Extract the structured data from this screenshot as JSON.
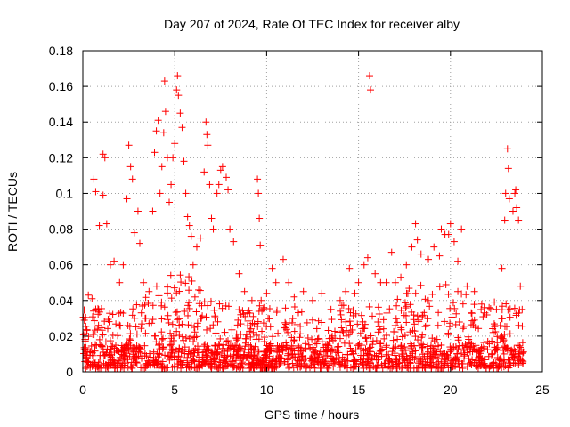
{
  "colors": {
    "series": "#ff0000",
    "axis": "#000000",
    "grid": "#a0a0a0",
    "background": "#ffffff"
  },
  "chart_data": {
    "type": "scatter",
    "title": "Day 207 of 2024, Rate Of TEC Index for receiver alby",
    "xlabel": "GPS time / hours",
    "ylabel": "ROTI / TECUs",
    "xlim": [
      0,
      25
    ],
    "ylim": [
      0,
      0.18
    ],
    "xticks": [
      "0",
      "5",
      "10",
      "15",
      "20",
      "25"
    ],
    "yticks": [
      "0",
      "0.02",
      "0.04",
      "0.06",
      "0.08",
      "0.1",
      "0.12",
      "0.14",
      "0.16",
      "0.18"
    ],
    "grid": true,
    "marker": "+",
    "series": [
      {
        "points": [
          [
            0.3,
            0.043
          ],
          [
            0.5,
            0.041
          ],
          [
            0.6,
            0.108
          ],
          [
            0.7,
            0.101
          ],
          [
            0.9,
            0.082
          ],
          [
            1.1,
            0.122
          ],
          [
            1.2,
            0.12
          ],
          [
            1.1,
            0.099
          ],
          [
            1.3,
            0.083
          ],
          [
            1.5,
            0.06
          ],
          [
            1.7,
            0.062
          ],
          [
            2.0,
            0.05
          ],
          [
            2.2,
            0.06
          ],
          [
            2.4,
            0.097
          ],
          [
            2.5,
            0.127
          ],
          [
            2.6,
            0.115
          ],
          [
            2.7,
            0.108
          ],
          [
            2.8,
            0.078
          ],
          [
            3.0,
            0.09
          ],
          [
            3.1,
            0.072
          ],
          [
            3.3,
            0.05
          ],
          [
            3.6,
            0.045
          ],
          [
            3.8,
            0.09
          ],
          [
            3.9,
            0.123
          ],
          [
            4.0,
            0.135
          ],
          [
            4.1,
            0.141
          ],
          [
            4.2,
            0.1
          ],
          [
            4.3,
            0.115
          ],
          [
            4.4,
            0.134
          ],
          [
            4.45,
            0.163
          ],
          [
            4.5,
            0.146
          ],
          [
            4.6,
            0.12
          ],
          [
            4.7,
            0.095
          ],
          [
            4.8,
            0.105
          ],
          [
            4.9,
            0.12
          ],
          [
            5.0,
            0.128
          ],
          [
            5.1,
            0.158
          ],
          [
            5.15,
            0.166
          ],
          [
            5.2,
            0.155
          ],
          [
            5.3,
            0.145
          ],
          [
            5.4,
            0.137
          ],
          [
            5.5,
            0.118
          ],
          [
            5.6,
            0.1
          ],
          [
            5.7,
            0.087
          ],
          [
            5.8,
            0.082
          ],
          [
            5.9,
            0.076
          ],
          [
            6.0,
            0.06
          ],
          [
            6.2,
            0.07
          ],
          [
            6.4,
            0.075
          ],
          [
            6.6,
            0.112
          ],
          [
            6.7,
            0.14
          ],
          [
            6.75,
            0.133
          ],
          [
            6.8,
            0.127
          ],
          [
            6.9,
            0.105
          ],
          [
            7.0,
            0.086
          ],
          [
            7.1,
            0.08
          ],
          [
            7.3,
            0.1
          ],
          [
            7.4,
            0.105
          ],
          [
            7.5,
            0.113
          ],
          [
            7.6,
            0.115
          ],
          [
            7.8,
            0.109
          ],
          [
            7.9,
            0.102
          ],
          [
            8.0,
            0.08
          ],
          [
            8.2,
            0.073
          ],
          [
            8.5,
            0.055
          ],
          [
            8.8,
            0.045
          ],
          [
            9.2,
            0.04
          ],
          [
            9.5,
            0.108
          ],
          [
            9.55,
            0.1
          ],
          [
            9.6,
            0.086
          ],
          [
            9.65,
            0.071
          ],
          [
            9.7,
            0.04
          ],
          [
            10.0,
            0.044
          ],
          [
            10.3,
            0.058
          ],
          [
            10.5,
            0.05
          ],
          [
            10.9,
            0.063
          ],
          [
            11.2,
            0.05
          ],
          [
            11.5,
            0.042
          ],
          [
            12.0,
            0.045
          ],
          [
            12.5,
            0.04
          ],
          [
            13.0,
            0.044
          ],
          [
            13.5,
            0.035
          ],
          [
            14.0,
            0.04
          ],
          [
            14.3,
            0.045
          ],
          [
            14.5,
            0.058
          ],
          [
            14.8,
            0.044
          ],
          [
            15.0,
            0.05
          ],
          [
            15.3,
            0.06
          ],
          [
            15.5,
            0.064
          ],
          [
            15.6,
            0.166
          ],
          [
            15.65,
            0.158
          ],
          [
            15.9,
            0.055
          ],
          [
            16.2,
            0.05
          ],
          [
            16.5,
            0.05
          ],
          [
            16.8,
            0.067
          ],
          [
            17.0,
            0.05
          ],
          [
            17.3,
            0.053
          ],
          [
            17.6,
            0.06
          ],
          [
            17.9,
            0.07
          ],
          [
            18.1,
            0.083
          ],
          [
            18.2,
            0.074
          ],
          [
            18.4,
            0.066
          ],
          [
            18.8,
            0.063
          ],
          [
            19.1,
            0.07
          ],
          [
            19.4,
            0.065
          ],
          [
            19.5,
            0.08
          ],
          [
            19.7,
            0.077
          ],
          [
            19.9,
            0.077
          ],
          [
            20.0,
            0.083
          ],
          [
            20.2,
            0.073
          ],
          [
            20.4,
            0.062
          ],
          [
            20.6,
            0.08
          ],
          [
            20.9,
            0.048
          ],
          [
            21.3,
            0.045
          ],
          [
            21.7,
            0.038
          ],
          [
            22.1,
            0.036
          ],
          [
            22.5,
            0.035
          ],
          [
            22.8,
            0.058
          ],
          [
            22.95,
            0.085
          ],
          [
            23.0,
            0.1
          ],
          [
            23.1,
            0.125
          ],
          [
            23.15,
            0.114
          ],
          [
            23.2,
            0.097
          ],
          [
            23.4,
            0.09
          ],
          [
            23.5,
            0.1
          ],
          [
            23.55,
            0.102
          ],
          [
            23.6,
            0.092
          ],
          [
            23.7,
            0.085
          ],
          [
            23.8,
            0.048
          ],
          [
            23.9,
            0.035
          ]
        ]
      }
    ]
  }
}
